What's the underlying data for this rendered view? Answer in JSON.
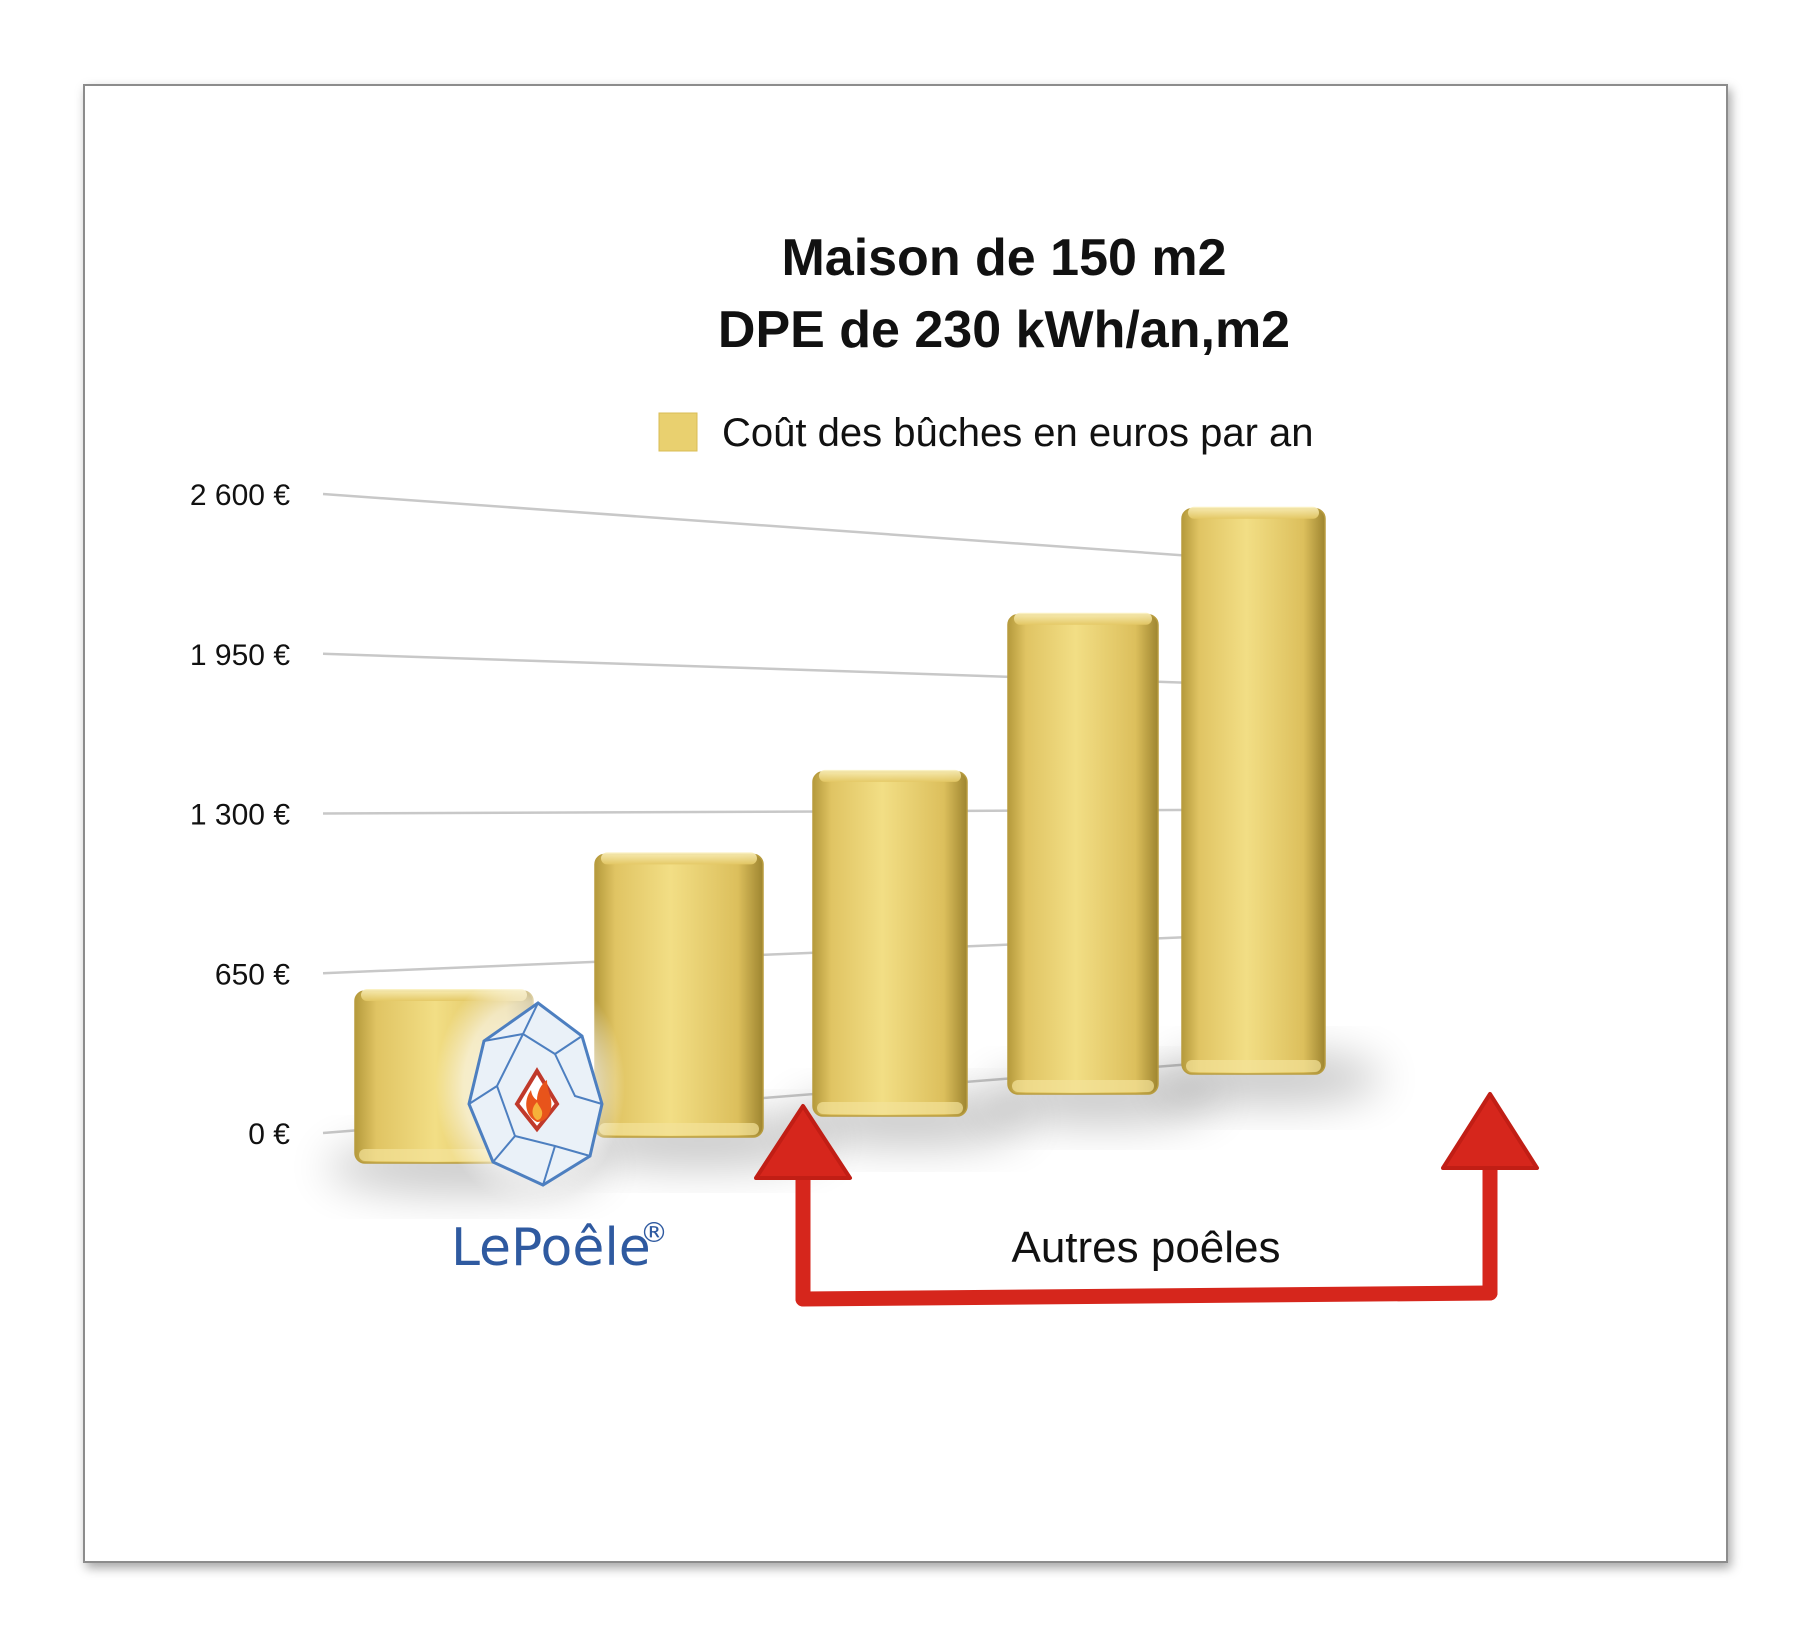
{
  "chart_data": {
    "type": "bar",
    "title": [
      "Maison de 150 m2",
      "DPE de 230 kWh/an,m2"
    ],
    "legend": "Coût des bûches en euros par an",
    "yticks": [
      "0 €",
      "650 €",
      "1 300 €",
      "1 950 €",
      "2 600 €"
    ],
    "ytick_values": [
      0,
      650,
      1300,
      1950,
      2600
    ],
    "ylim": [
      0,
      2600
    ],
    "categories": [
      "LePoêle",
      "",
      "",
      "",
      ""
    ],
    "values": [
      700,
      1150,
      1400,
      1950,
      2300
    ],
    "bar_color": "#e9d06f",
    "gridlines": true,
    "legend_position": "top",
    "annotation": "Autres poêles",
    "annotation_color": "#d6261c"
  },
  "brand": {
    "name": "LePoêle",
    "registered": "®"
  }
}
